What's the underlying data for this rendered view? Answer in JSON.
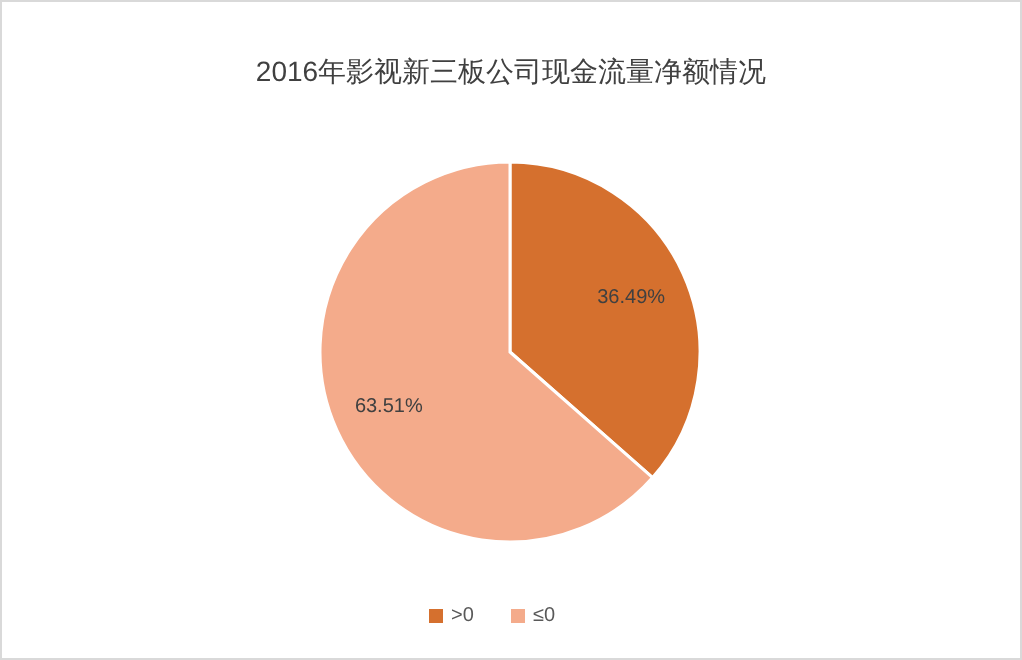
{
  "chart_data": {
    "type": "pie",
    "title": "2016年影视新三板公司现金流量净额情况",
    "categories": [
      ">0",
      "≤0"
    ],
    "values": [
      36.49,
      63.51
    ],
    "colors": [
      "#d5702e",
      "#f4ab8b"
    ],
    "value_labels": [
      "36.49%",
      "63.51%"
    ],
    "legend": "bottom"
  }
}
